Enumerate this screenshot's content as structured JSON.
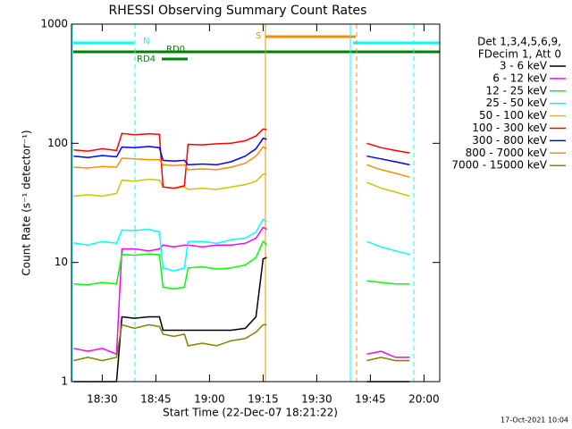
{
  "chart_data": {
    "type": "line",
    "title": "RHESSI Observing Summary Count Rates",
    "xlabel": "Start Time (22-Dec-07 18:21:22)",
    "ylabel": "Count Rate (s⁻¹ detector⁻¹)",
    "footer": "17-Oct-2021 10:04",
    "legend_header": [
      "Det 1,3,4,5,6,9,",
      "FDecim 1, Att 0"
    ],
    "flags": {
      "night": "N",
      "saa": "S",
      "rd0": "RD0",
      "rd4": "RD4"
    },
    "log_y": true,
    "legend": "upper right outside",
    "xlim": [
      1101.4,
      1204.4
    ],
    "xticks": [
      {
        "value": 1110,
        "label": "18:30"
      },
      {
        "value": 1125,
        "label": "18:45"
      },
      {
        "value": 1140,
        "label": "19:00"
      },
      {
        "value": 1155,
        "label": "19:15"
      },
      {
        "value": 1170,
        "label": "19:30"
      },
      {
        "value": 1185,
        "label": "19:45"
      },
      {
        "value": 1200,
        "label": "20:00"
      }
    ],
    "ylim": [
      1,
      1000
    ],
    "yticks": [
      1,
      10,
      100,
      1000
    ],
    "x": [
      1102,
      1106,
      1110,
      1114,
      1115.5,
      1119,
      1123,
      1126,
      1127,
      1130,
      1133,
      1134,
      1138,
      1142,
      1146,
      1150,
      1153,
      1155,
      1156,
      1170,
      1184,
      1188,
      1192,
      1196
    ],
    "series": [
      {
        "name": "3 - 6 keV",
        "color": "#000000",
        "values": [
          1,
          1,
          1,
          1,
          3.5,
          3.4,
          3.5,
          3.5,
          2.7,
          2.7,
          2.7,
          2.7,
          2.7,
          2.7,
          2.7,
          2.8,
          3.5,
          10.7,
          11,
          null,
          1,
          1,
          1,
          1
        ]
      },
      {
        "name": "6 - 12 keV",
        "color": "#ff00ff",
        "values": [
          1.9,
          1.8,
          1.9,
          1.7,
          13,
          13,
          12.5,
          13,
          14,
          13.5,
          14,
          14,
          13.5,
          14,
          14,
          14.5,
          16,
          19.7,
          19,
          null,
          1.7,
          1.8,
          1.6,
          1.6
        ]
      },
      {
        "name": "12 - 25 keV",
        "color": "#00ff00",
        "values": [
          6.6,
          6.5,
          6.8,
          6.6,
          11.7,
          11.5,
          11.8,
          11.6,
          6.2,
          6,
          6.2,
          9,
          9.2,
          8.8,
          9,
          9.5,
          11,
          15,
          14,
          null,
          7,
          6.8,
          6.6,
          6.6
        ]
      },
      {
        "name": "25 - 50 keV",
        "color": "#00ffff",
        "values": [
          14.6,
          14,
          15,
          14.5,
          18.7,
          18.5,
          19,
          18,
          9,
          8.5,
          9,
          15,
          15,
          14.5,
          15.5,
          16,
          18,
          23,
          22,
          null,
          15,
          13.5,
          12.5,
          11.7
        ]
      },
      {
        "name": "50 - 100 keV",
        "color": "#c8c800",
        "values": [
          36,
          37,
          36,
          38,
          49,
          48,
          50,
          49,
          43,
          42,
          43,
          41,
          42,
          41,
          43,
          45,
          48,
          55,
          55,
          null,
          47,
          42,
          39,
          36
        ]
      },
      {
        "name": "100 - 300 keV",
        "color": "#ff0000",
        "values": [
          88,
          86,
          90,
          87,
          121,
          118,
          120,
          119,
          43,
          42,
          44,
          98,
          97,
          99,
          100,
          105,
          115,
          132,
          130,
          null,
          100,
          92,
          87,
          83
        ]
      },
      {
        "name": "300 - 800 keV",
        "color": "#0000ff",
        "values": [
          78,
          76,
          79,
          77,
          93,
          92,
          94,
          92,
          72,
          71,
          72,
          66,
          67,
          66,
          70,
          78,
          90,
          110,
          108,
          null,
          78,
          74,
          70,
          66
        ]
      },
      {
        "name": "800 - 7000 keV",
        "color": "#ff8c00",
        "values": [
          63,
          62,
          64,
          63,
          75,
          74,
          73,
          73,
          66,
          65,
          66,
          60,
          61,
          60,
          63,
          68,
          78,
          93,
          90,
          null,
          66,
          60,
          56,
          52
        ]
      },
      {
        "name": "7000 - 15000 keV",
        "color": "#808000",
        "values": [
          1.5,
          1.6,
          1.5,
          1.6,
          3,
          2.8,
          3,
          2.9,
          2.5,
          2.4,
          2.5,
          2,
          2.1,
          2,
          2.2,
          2.3,
          2.6,
          3,
          3,
          null,
          1.5,
          1.6,
          1.5,
          1.5
        ]
      }
    ]
  }
}
